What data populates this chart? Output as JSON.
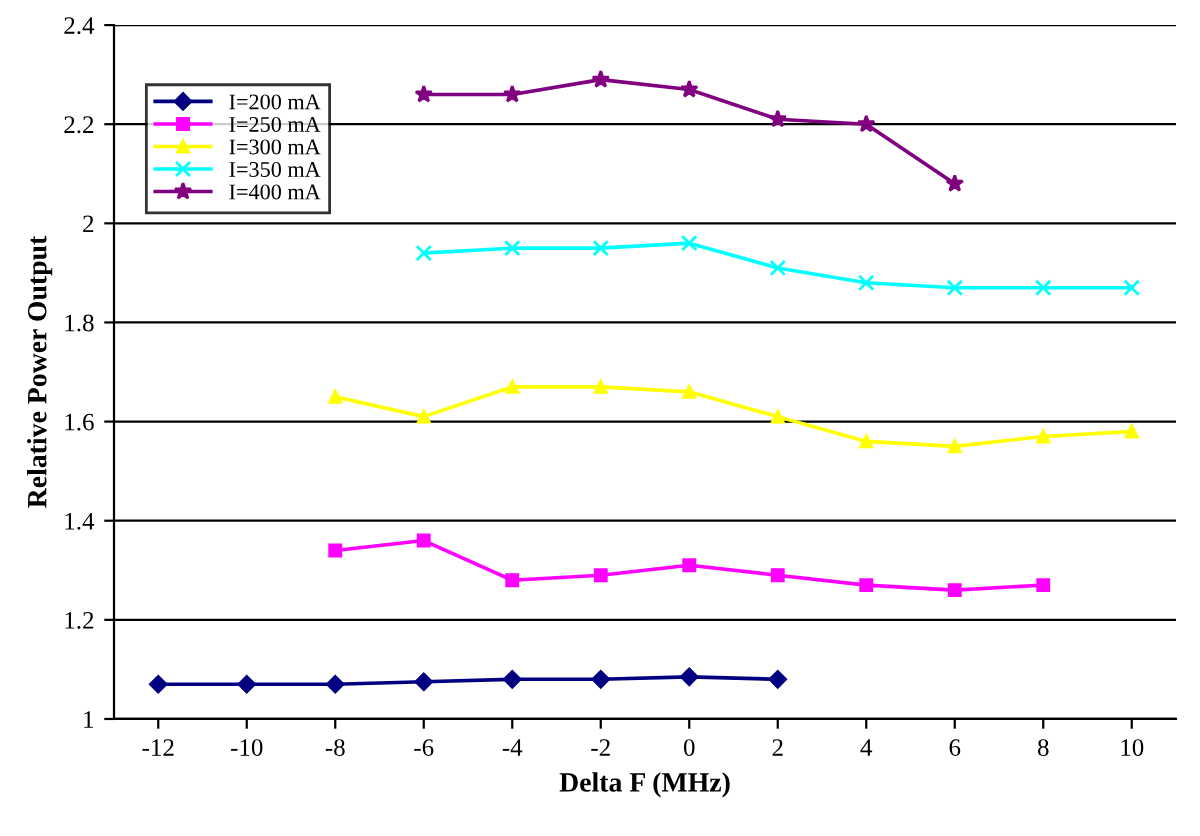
{
  "chart_data": {
    "type": "line",
    "xlabel": "Delta F (MHz)",
    "ylabel": "Relative Power Output",
    "xlim": [
      -13,
      11
    ],
    "xticks": [
      -12,
      -10,
      -8,
      -6,
      -4,
      -2,
      0,
      2,
      4,
      6,
      8,
      10
    ],
    "ylim": [
      1,
      2.4
    ],
    "yticks": [
      1,
      1.2,
      1.4,
      1.6,
      1.8,
      2,
      2.2,
      2.4
    ],
    "grid": "y",
    "legend": "top left",
    "series": [
      {
        "name": "I=200 mA",
        "color": "#000080",
        "marker": "diamond",
        "x": [
          -12,
          -10,
          -8,
          -6,
          -4,
          -2,
          0,
          2
        ],
        "values": [
          1.07,
          1.07,
          1.07,
          1.075,
          1.08,
          1.08,
          1.085,
          1.08
        ]
      },
      {
        "name": "I=250 mA",
        "color": "#ff00ff",
        "marker": "square",
        "x": [
          -8,
          -6,
          -4,
          -2,
          0,
          2,
          4,
          6,
          8
        ],
        "values": [
          1.34,
          1.36,
          1.28,
          1.29,
          1.31,
          1.29,
          1.27,
          1.26,
          1.27
        ]
      },
      {
        "name": "I=300 mA",
        "color": "#ffff00",
        "marker": "triangle",
        "x": [
          -8,
          -6,
          -4,
          -2,
          0,
          2,
          4,
          6,
          8,
          10
        ],
        "values": [
          1.65,
          1.61,
          1.67,
          1.67,
          1.66,
          1.61,
          1.56,
          1.55,
          1.57,
          1.58
        ]
      },
      {
        "name": "I=350 mA",
        "color": "#00ffff",
        "marker": "cross",
        "x": [
          -6,
          -4,
          -2,
          0,
          2,
          4,
          6,
          8,
          10
        ],
        "values": [
          1.94,
          1.95,
          1.95,
          1.96,
          1.91,
          1.88,
          1.87,
          1.87,
          1.87
        ]
      },
      {
        "name": "I=400 mA",
        "color": "#800080",
        "marker": "star",
        "x": [
          -6,
          -4,
          -2,
          0,
          2,
          4,
          6
        ],
        "values": [
          2.26,
          2.26,
          2.29,
          2.27,
          2.21,
          2.2,
          2.08
        ]
      }
    ]
  }
}
